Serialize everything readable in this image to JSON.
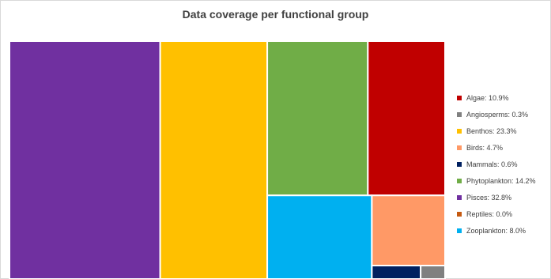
{
  "chart_data": {
    "type": "treemap",
    "title": "Data coverage per functional group",
    "legend_position": "right",
    "series": [
      {
        "name": "Pisces",
        "value": 32.8,
        "label": "Pisces: 32.8%",
        "color": "#7030A0"
      },
      {
        "name": "Benthos",
        "value": 23.3,
        "label": "Benthos: 23.3%",
        "color": "#FFC000"
      },
      {
        "name": "Phytoplankton",
        "value": 14.2,
        "label": "Phytoplankton: 14.2%",
        "color": "#70AD47"
      },
      {
        "name": "Algae",
        "value": 10.9,
        "label": "Algae: 10.9%",
        "color": "#C00000"
      },
      {
        "name": "Zooplankton",
        "value": 8.0,
        "label": "Zooplankton: 8.0%",
        "color": "#00B0F0"
      },
      {
        "name": "Birds",
        "value": 4.7,
        "label": "Birds: 4.7%",
        "color": "#FF9966"
      },
      {
        "name": "Mammals",
        "value": 0.6,
        "label": "Mammals: 0.6%",
        "color": "#002060"
      },
      {
        "name": "Angiosperms",
        "value": 0.3,
        "label": "Angiosperms: 0.3%",
        "color": "#808080"
      },
      {
        "name": "Reptiles",
        "value": 0.0,
        "label": "Reptiles: 0.0%",
        "color": "#C55A11"
      }
    ],
    "legend_order": [
      "Algae",
      "Angiosperms",
      "Benthos",
      "Birds",
      "Mammals",
      "Phytoplankton",
      "Pisces",
      "Reptiles",
      "Zooplankton"
    ]
  }
}
